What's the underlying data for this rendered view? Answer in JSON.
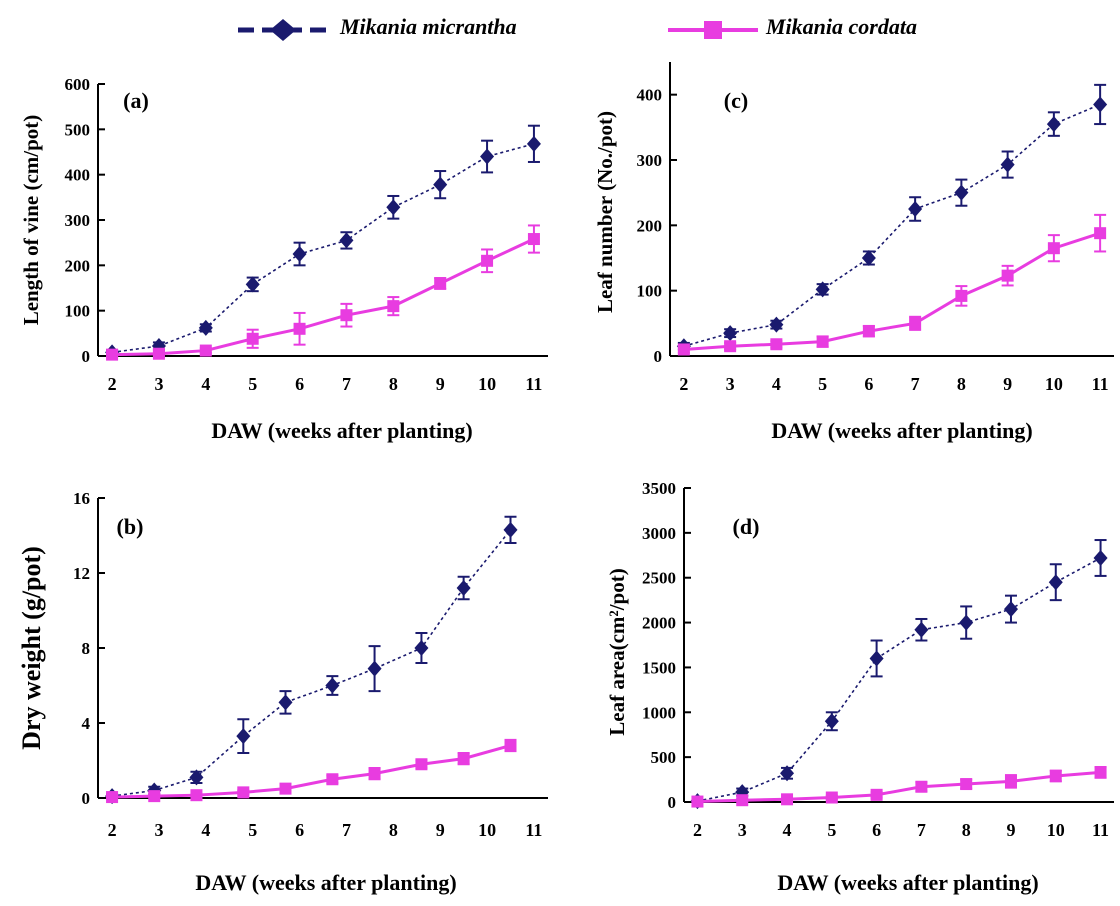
{
  "legend": {
    "series1": "Mikania micrantha",
    "series2": "Mikania cordata"
  },
  "colors": {
    "micrantha": "#1a1a6e",
    "cordata": "#e83ce0"
  },
  "chart_data": [
    {
      "panel": "(a)",
      "type": "line",
      "xlabel": "DAW (weeks after planting)",
      "ylabel": "Length of vine (cm/pot)",
      "ylim": [
        0,
        600
      ],
      "yticks": [
        0,
        100,
        200,
        300,
        400,
        500,
        600
      ],
      "xticks": [
        2,
        3,
        4,
        5,
        6,
        7,
        8,
        9,
        10,
        11
      ],
      "series": [
        {
          "name": "Mikania micrantha",
          "x": [
            2,
            3,
            4,
            5,
            6,
            7,
            8,
            9,
            10,
            11
          ],
          "values": [
            8,
            22,
            62,
            158,
            225,
            255,
            328,
            378,
            440,
            468
          ],
          "errors": [
            5,
            8,
            8,
            15,
            25,
            18,
            25,
            30,
            35,
            40
          ]
        },
        {
          "name": "Mikania cordata",
          "x": [
            2,
            3,
            4,
            5,
            6,
            7,
            8,
            9,
            10,
            11
          ],
          "values": [
            3,
            5,
            12,
            38,
            60,
            90,
            110,
            160,
            210,
            258
          ],
          "errors": [
            3,
            4,
            5,
            20,
            35,
            25,
            20,
            12,
            25,
            30
          ]
        }
      ]
    },
    {
      "panel": "(c)",
      "type": "line",
      "xlabel": "DAW (weeks after planting)",
      "ylabel": "Leaf number (No./pot)",
      "ylim": [
        0,
        450
      ],
      "yticks": [
        0,
        100,
        200,
        300,
        400
      ],
      "xticks": [
        2,
        3,
        4,
        5,
        6,
        7,
        8,
        9,
        10,
        11
      ],
      "series": [
        {
          "name": "Mikania micrantha",
          "x": [
            2,
            3,
            4,
            5,
            6,
            7,
            8,
            9,
            10,
            11
          ],
          "values": [
            15,
            35,
            48,
            102,
            150,
            225,
            250,
            293,
            355,
            385
          ],
          "errors": [
            5,
            6,
            6,
            8,
            10,
            18,
            20,
            20,
            18,
            30
          ]
        },
        {
          "name": "Mikania cordata",
          "x": [
            2,
            3,
            4,
            5,
            6,
            7,
            8,
            9,
            10,
            11
          ],
          "values": [
            10,
            15,
            18,
            22,
            38,
            50,
            92,
            123,
            165,
            188
          ],
          "errors": [
            5,
            5,
            5,
            8,
            8,
            10,
            15,
            15,
            20,
            28
          ]
        }
      ]
    },
    {
      "panel": "(b)",
      "type": "line",
      "xlabel": "DAW (weeks after planting)",
      "ylabel": "Dry weight (g/pot)",
      "ylim": [
        0,
        16
      ],
      "yticks": [
        0,
        4,
        8,
        12,
        16
      ],
      "xticks": [
        2,
        3,
        4,
        5,
        6,
        7,
        8,
        9,
        10,
        11
      ],
      "series": [
        {
          "name": "Mikania micrantha",
          "x": [
            2,
            2.9,
            3.8,
            4.8,
            5.7,
            6.7,
            7.6,
            8.6,
            9.5,
            10.5
          ],
          "values": [
            0.1,
            0.4,
            1.1,
            3.3,
            5.1,
            6.0,
            6.9,
            8.0,
            11.2,
            14.3
          ],
          "errors": [
            0.1,
            0.2,
            0.3,
            0.9,
            0.6,
            0.5,
            1.2,
            0.8,
            0.6,
            0.7
          ]
        },
        {
          "name": "Mikania cordata",
          "x": [
            2,
            2.9,
            3.8,
            4.8,
            5.7,
            6.7,
            7.6,
            8.6,
            9.5,
            10.5
          ],
          "values": [
            0.05,
            0.1,
            0.15,
            0.3,
            0.5,
            1.0,
            1.3,
            1.8,
            2.1,
            2.8
          ],
          "errors": [
            0.05,
            0.05,
            0.05,
            0.1,
            0.2,
            0.2,
            0.3,
            0.2,
            0.3,
            0.3
          ]
        }
      ]
    },
    {
      "panel": "(d)",
      "type": "line",
      "xlabel": "DAW (weeks after planting)",
      "ylabel": "Leaf area(cm²/pot)",
      "ylim": [
        0,
        3500
      ],
      "yticks": [
        0,
        500,
        1000,
        1500,
        2000,
        2500,
        3000,
        3500
      ],
      "xticks": [
        2,
        3,
        4,
        5,
        6,
        7,
        8,
        9,
        10,
        11
      ],
      "series": [
        {
          "name": "Mikania micrantha",
          "x": [
            2,
            3,
            4,
            5,
            6,
            7,
            8,
            9,
            10,
            11
          ],
          "values": [
            10,
            110,
            320,
            900,
            1600,
            1920,
            2000,
            2150,
            2450,
            2720
          ],
          "errors": [
            10,
            40,
            60,
            100,
            200,
            120,
            180,
            150,
            200,
            200
          ]
        },
        {
          "name": "Mikania cordata",
          "x": [
            2,
            3,
            4,
            5,
            6,
            7,
            8,
            9,
            10,
            11
          ],
          "values": [
            5,
            20,
            30,
            50,
            80,
            170,
            200,
            230,
            290,
            330
          ],
          "errors": [
            5,
            10,
            10,
            20,
            30,
            50,
            50,
            70,
            60,
            60
          ]
        }
      ]
    }
  ]
}
